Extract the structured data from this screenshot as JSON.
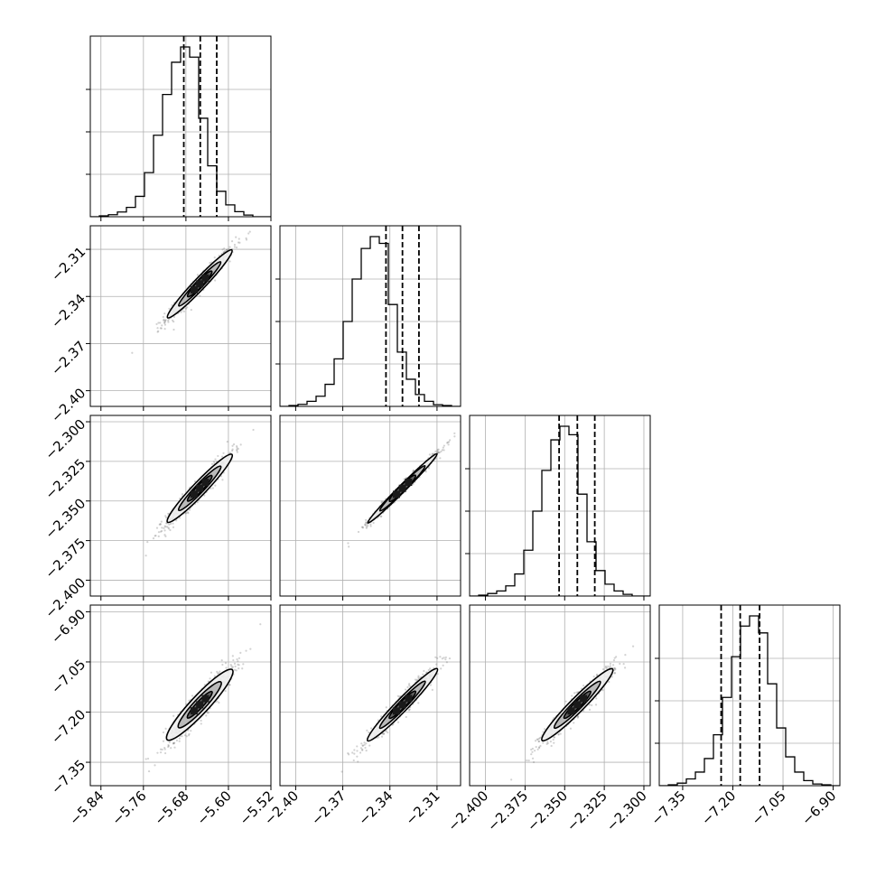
{
  "chart_data": {
    "type": "corner",
    "grid": true,
    "hist_color": "#000000",
    "contour_color": "#000000",
    "scatter_color": "#7f7f7f",
    "quantile_line_style": "dashed",
    "parameters": [
      {
        "range": [
          -5.86,
          -5.52
        ],
        "ticks": [
          -5.84,
          -5.76,
          -5.68,
          -5.6,
          -5.52
        ],
        "tick_labels": [
          "−5.84",
          "−5.76",
          "−5.68",
          "−5.60",
          "−5.52"
        ],
        "mean": -5.654,
        "sd": 0.03,
        "quantiles": [
          -5.684,
          -5.653,
          -5.622
        ]
      },
      {
        "range": [
          -2.41,
          -2.295
        ],
        "ticks": [
          -2.4,
          -2.37,
          -2.34,
          -2.31
        ],
        "tick_labels": [
          "−2.40",
          "−2.37",
          "−2.34",
          "−2.31"
        ],
        "mean": -2.332,
        "sd": 0.011,
        "quantiles": [
          -2.3425,
          -2.332,
          -2.3215
        ]
      },
      {
        "range": [
          -2.41,
          -2.296
        ],
        "ticks": [
          -2.4,
          -2.375,
          -2.35,
          -2.325,
          -2.3
        ],
        "tick_labels": [
          "−2.400",
          "−2.375",
          "−2.350",
          "−2.325",
          "−2.300"
        ],
        "mean": -2.342,
        "sd": 0.011,
        "quantiles": [
          -2.3535,
          -2.342,
          -2.331
        ]
      },
      {
        "range": [
          -7.42,
          -6.88
        ],
        "ticks": [
          -7.35,
          -7.2,
          -7.05,
          -6.9
        ],
        "tick_labels": [
          "−7.35",
          "−7.20",
          "−7.05",
          "−6.90"
        ],
        "mean": -7.178,
        "sd": 0.055,
        "quantiles": [
          -7.235,
          -7.178,
          -7.12
        ]
      }
    ],
    "correlations": [
      [
        1,
        0.97,
        0.96,
        0.93
      ],
      [
        0.97,
        1,
        0.99,
        0.97
      ],
      [
        0.96,
        0.99,
        1,
        0.96
      ],
      [
        0.93,
        0.97,
        0.96,
        1
      ]
    ],
    "histograms": [
      [
        0.0,
        0.005,
        0.012,
        0.028,
        0.055,
        0.12,
        0.26,
        0.48,
        0.72,
        0.91,
        1.0,
        0.94,
        0.58,
        0.3,
        0.15,
        0.07,
        0.03,
        0.01,
        0.0,
        0.0
      ],
      [
        0.0,
        0.005,
        0.012,
        0.03,
        0.06,
        0.13,
        0.28,
        0.5,
        0.75,
        0.93,
        1.0,
        0.96,
        0.6,
        0.32,
        0.16,
        0.07,
        0.03,
        0.01,
        0.005,
        0.0
      ],
      [
        0.0,
        0.005,
        0.015,
        0.03,
        0.06,
        0.13,
        0.27,
        0.5,
        0.74,
        0.92,
        1.0,
        0.95,
        0.6,
        0.32,
        0.15,
        0.07,
        0.03,
        0.01,
        0.0,
        0.0
      ],
      [
        0.0,
        0.005,
        0.015,
        0.04,
        0.08,
        0.16,
        0.3,
        0.52,
        0.76,
        0.94,
        1.0,
        0.9,
        0.6,
        0.34,
        0.17,
        0.08,
        0.03,
        0.01,
        0.005,
        0.0
      ]
    ]
  }
}
